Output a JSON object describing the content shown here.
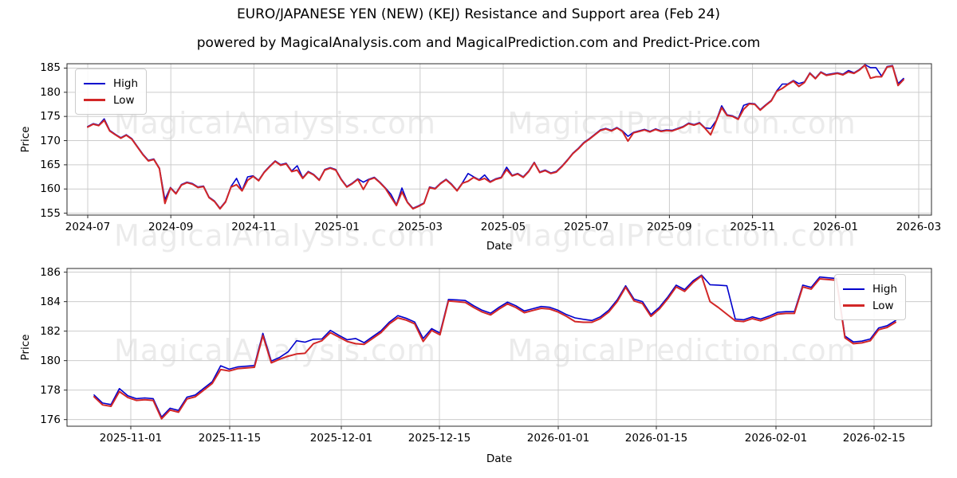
{
  "title": "EURO/JAPANESE YEN (NEW) (KEJ) Resistance and Support area (Feb 24)",
  "subtitle": "powered by MagicalAnalysis.com and MagicalPrediction.com and Predict-Price.com",
  "watermarks": {
    "left": "MagicalAnalysis.com",
    "right": "MagicalPrediction.com"
  },
  "colors": {
    "high": "#0000cd",
    "low": "#d22727",
    "grid": "#cccccc",
    "spine": "#2b2b2b",
    "tick": "#2b2b2b"
  },
  "chart_data": [
    {
      "type": "line",
      "name": "full-history",
      "xlabel": "Date",
      "ylabel": "Price",
      "x_tick_labels": [
        "2024-07",
        "2024-09",
        "2024-11",
        "2025-01",
        "2025-03",
        "2025-05",
        "2025-07",
        "2025-09",
        "2025-11",
        "2026-01",
        "2026-03"
      ],
      "y_tick_values": [
        155,
        160,
        165,
        170,
        175,
        180,
        185
      ],
      "ylim": [
        154.6,
        185.9
      ],
      "grid": true,
      "legend_position": "upper-left",
      "series": [
        {
          "name": "High",
          "color": "#0000cd",
          "values": [
            172.92,
            173.52,
            173.22,
            174.5,
            172.12,
            171.32,
            170.62,
            171.22,
            170.42,
            168.82,
            167.22,
            165.92,
            166.22,
            164.32,
            157.8,
            160.32,
            159.12,
            160.92,
            161.42,
            161.12,
            160.42,
            160.62,
            158.32,
            157.52,
            156.02,
            157.42,
            160.52,
            162.2,
            159.72,
            162.5,
            162.72,
            161.82,
            163.52,
            164.72,
            165.82,
            165.02,
            165.32,
            163.72,
            164.8,
            162.32,
            163.62,
            163.02,
            161.92,
            164.02,
            164.42,
            164.02,
            162.02,
            160.52,
            161.22,
            162.12,
            161.4,
            162.02,
            162.42,
            161.42,
            160.22,
            158.9,
            156.72,
            160.2,
            157.32,
            156.02,
            156.52,
            157.12,
            160.42,
            160.12,
            161.22,
            162.02,
            161.02,
            159.72,
            161.32,
            163.2,
            162.52,
            161.92,
            162.9,
            161.52,
            162.12,
            162.42,
            164.5,
            162.82,
            163.22,
            162.52,
            163.72,
            165.52,
            163.52,
            163.92,
            163.32,
            163.62,
            164.72,
            166.02,
            167.42,
            168.42,
            169.62,
            170.42,
            171.32,
            172.22,
            172.52,
            172.12,
            172.72,
            172.02,
            170.9,
            171.72,
            172.02,
            172.32,
            171.92,
            172.42,
            172.02,
            172.22,
            172.12,
            172.52,
            172.92,
            173.62,
            173.32,
            173.72,
            172.62,
            172.5,
            174.12,
            177.2,
            175.32,
            175.12,
            174.52,
            177.3,
            177.72,
            177.62,
            176.42,
            177.42,
            178.32,
            180.32,
            181.7,
            181.72,
            182.42,
            181.8,
            182.12,
            184.02,
            182.92,
            184.22,
            183.62,
            183.82,
            184.02,
            183.72,
            184.5,
            184.02,
            184.72,
            185.7,
            185.1,
            185.1,
            183.35,
            185.32,
            185.52,
            181.8,
            182.85
          ]
        },
        {
          "name": "Low",
          "color": "#d22727",
          "values": [
            172.8,
            173.4,
            173.1,
            174.2,
            172.0,
            171.2,
            170.5,
            171.1,
            170.3,
            168.7,
            167.1,
            165.8,
            166.1,
            164.2,
            157.0,
            160.2,
            159.0,
            160.8,
            161.3,
            161.0,
            160.3,
            160.5,
            158.2,
            157.4,
            155.9,
            157.3,
            160.4,
            160.9,
            159.6,
            161.8,
            162.6,
            161.7,
            163.4,
            164.6,
            165.7,
            164.9,
            165.2,
            163.6,
            163.9,
            162.2,
            163.5,
            162.9,
            161.8,
            163.9,
            164.3,
            163.9,
            161.9,
            160.4,
            161.1,
            162.0,
            159.9,
            161.9,
            162.3,
            161.3,
            160.1,
            158.3,
            156.6,
            159.4,
            157.2,
            155.9,
            156.4,
            157.0,
            160.3,
            160.0,
            161.1,
            161.9,
            160.9,
            159.6,
            161.2,
            161.6,
            162.4,
            161.8,
            162.2,
            161.4,
            162.0,
            162.3,
            164.0,
            162.7,
            163.1,
            162.4,
            163.6,
            165.4,
            163.4,
            163.8,
            163.2,
            163.5,
            164.6,
            165.9,
            167.3,
            168.3,
            169.5,
            170.3,
            171.2,
            172.1,
            172.4,
            172.0,
            172.6,
            171.9,
            169.9,
            171.6,
            171.9,
            172.2,
            171.8,
            172.3,
            171.9,
            172.1,
            172.0,
            172.4,
            172.8,
            173.5,
            173.2,
            173.6,
            172.5,
            171.2,
            174.0,
            176.8,
            175.2,
            175.0,
            174.4,
            176.5,
            177.6,
            177.5,
            176.3,
            177.3,
            178.2,
            180.2,
            180.8,
            181.6,
            182.3,
            181.2,
            182.0,
            183.9,
            182.8,
            184.1,
            183.5,
            183.7,
            183.9,
            183.6,
            184.2,
            183.9,
            184.6,
            185.6,
            182.9,
            183.2,
            183.2,
            185.2,
            185.4,
            181.4,
            182.6
          ]
        }
      ]
    },
    {
      "type": "line",
      "name": "recent-detail",
      "xlabel": "Date",
      "ylabel": "Price",
      "x_tick_labels": [
        "2025-11-01",
        "2025-11-15",
        "2025-12-01",
        "2025-12-15",
        "2026-01-01",
        "2026-01-15",
        "2026-02-01",
        "2026-02-15"
      ],
      "y_tick_values": [
        176,
        178,
        180,
        182,
        184,
        186
      ],
      "ylim": [
        175.55,
        186.25
      ],
      "grid": true,
      "legend_position": "upper-right",
      "series": [
        {
          "name": "High",
          "color": "#0000cd",
          "values": [
            177.67,
            177.12,
            177.02,
            178.1,
            177.62,
            177.42,
            177.47,
            177.42,
            176.17,
            176.77,
            176.62,
            177.52,
            177.67,
            178.12,
            178.57,
            179.65,
            179.42,
            179.57,
            179.62,
            179.67,
            181.85,
            179.97,
            180.22,
            180.6,
            181.35,
            181.25,
            181.45,
            181.47,
            182.05,
            181.72,
            181.42,
            181.5,
            181.22,
            181.62,
            182.02,
            182.62,
            183.05,
            182.87,
            182.62,
            181.5,
            182.17,
            181.87,
            184.15,
            184.12,
            184.08,
            183.72,
            183.42,
            183.22,
            183.62,
            183.97,
            183.72,
            183.37,
            183.52,
            183.67,
            183.62,
            183.42,
            183.12,
            182.9,
            182.8,
            182.72,
            182.97,
            183.42,
            184.12,
            185.08,
            184.17,
            184.0,
            183.12,
            183.62,
            184.32,
            185.12,
            184.82,
            185.42,
            185.8,
            185.15,
            185.12,
            185.08,
            182.82,
            182.77,
            182.97,
            182.82,
            183.02,
            183.27,
            183.32,
            183.32,
            185.12,
            184.97,
            185.67,
            185.62,
            185.57,
            181.67,
            181.27,
            181.32,
            181.47,
            182.22,
            182.37,
            182.72
          ]
        },
        {
          "name": "Low",
          "color": "#d22727",
          "values": [
            177.55,
            177.0,
            176.9,
            177.9,
            177.5,
            177.3,
            177.35,
            177.3,
            176.05,
            176.65,
            176.5,
            177.4,
            177.55,
            178.0,
            178.45,
            179.4,
            179.3,
            179.45,
            179.5,
            179.55,
            181.7,
            179.85,
            180.1,
            180.3,
            180.45,
            180.5,
            181.15,
            181.35,
            181.9,
            181.6,
            181.3,
            181.15,
            181.1,
            181.5,
            181.9,
            182.5,
            182.9,
            182.75,
            182.5,
            181.3,
            182.05,
            181.75,
            184.05,
            184.0,
            183.95,
            183.6,
            183.3,
            183.1,
            183.5,
            183.85,
            183.6,
            183.25,
            183.4,
            183.55,
            183.5,
            183.3,
            183.0,
            182.65,
            182.6,
            182.6,
            182.85,
            183.3,
            184.0,
            184.98,
            184.05,
            183.88,
            183.0,
            183.5,
            184.2,
            185.0,
            184.7,
            185.3,
            185.75,
            184.0,
            183.6,
            183.15,
            182.7,
            182.65,
            182.85,
            182.7,
            182.9,
            183.15,
            183.2,
            183.2,
            185.0,
            184.85,
            185.55,
            185.5,
            185.45,
            181.55,
            181.15,
            181.2,
            181.35,
            182.1,
            182.25,
            182.6
          ]
        }
      ]
    }
  ]
}
